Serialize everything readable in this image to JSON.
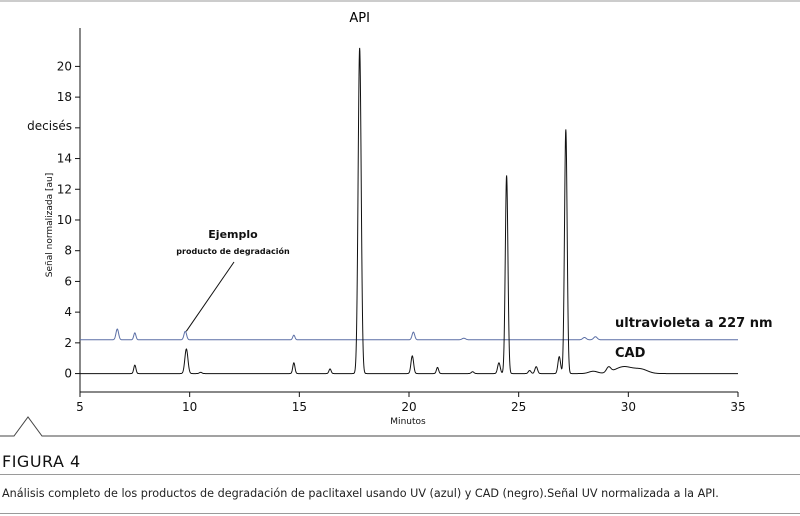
{
  "chart_data": {
    "type": "line",
    "xlabel": "Minutos",
    "ylabel": "Señal normalizada [au]",
    "xlim": [
      5,
      35
    ],
    "ylim": [
      -1.2,
      22.5
    ],
    "xticks": [
      5,
      10,
      15,
      20,
      25,
      30,
      35
    ],
    "yticks": [
      "0",
      "2",
      "4",
      "6",
      "8",
      "10",
      "12",
      "14",
      "decisés",
      "18",
      "20"
    ],
    "grid": false,
    "series": [
      {
        "name": "ultravioleta a 227 nm",
        "color": "#5b6fa6",
        "baseline": 2.2,
        "peaks": [
          {
            "t": 6.7,
            "h": 0.7,
            "w": 0.06
          },
          {
            "t": 7.5,
            "h": 0.45,
            "w": 0.05
          },
          {
            "t": 9.8,
            "h": 0.55,
            "w": 0.06
          },
          {
            "t": 14.75,
            "h": 0.3,
            "w": 0.05
          },
          {
            "t": 20.2,
            "h": 0.5,
            "w": 0.06
          },
          {
            "t": 22.5,
            "h": 0.1,
            "w": 0.08
          },
          {
            "t": 28.0,
            "h": 0.15,
            "w": 0.08
          },
          {
            "t": 28.5,
            "h": 0.2,
            "w": 0.08
          }
        ]
      },
      {
        "name": "CAD",
        "color": "#111111",
        "baseline": 0,
        "peaks": [
          {
            "t": 7.5,
            "h": 0.55,
            "w": 0.05
          },
          {
            "t": 9.85,
            "h": 1.6,
            "w": 0.07
          },
          {
            "t": 10.5,
            "h": 0.08,
            "w": 0.06
          },
          {
            "t": 14.75,
            "h": 0.7,
            "w": 0.05
          },
          {
            "t": 16.4,
            "h": 0.3,
            "w": 0.05
          },
          {
            "t": 17.75,
            "h": 21.2,
            "w": 0.07
          },
          {
            "t": 20.15,
            "h": 1.15,
            "w": 0.06
          },
          {
            "t": 21.3,
            "h": 0.4,
            "w": 0.05
          },
          {
            "t": 22.9,
            "h": 0.12,
            "w": 0.06
          },
          {
            "t": 24.1,
            "h": 0.7,
            "w": 0.06
          },
          {
            "t": 24.45,
            "h": 12.9,
            "w": 0.06
          },
          {
            "t": 25.5,
            "h": 0.2,
            "w": 0.06
          },
          {
            "t": 25.8,
            "h": 0.45,
            "w": 0.06
          },
          {
            "t": 26.85,
            "h": 1.1,
            "w": 0.06
          },
          {
            "t": 27.15,
            "h": 15.9,
            "w": 0.06
          },
          {
            "t": 28.4,
            "h": 0.15,
            "w": 0.2
          },
          {
            "t": 29.1,
            "h": 0.35,
            "w": 0.1
          },
          {
            "t": 29.8,
            "h": 0.45,
            "w": 0.4
          },
          {
            "t": 30.6,
            "h": 0.25,
            "w": 0.3
          }
        ]
      }
    ],
    "annotations": {
      "api": "API",
      "example_title": "Ejemplo",
      "example_sub": "producto de degradación",
      "example_x": 9.8,
      "example_y": 2.75
    }
  },
  "caption": {
    "figure": "FIGURA 4",
    "text": "Análisis completo de los productos de degradación de paclitaxel usando UV (azul) y CAD (negro).Señal UV normalizada a la API."
  }
}
